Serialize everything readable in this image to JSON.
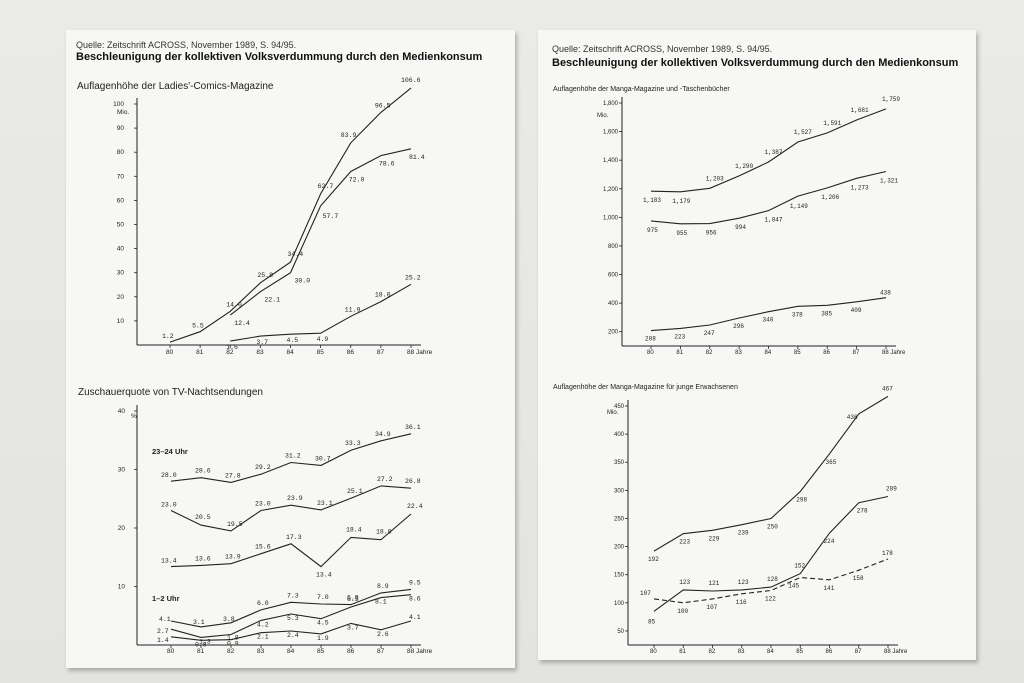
{
  "sheets": [
    {
      "source": "Quelle: Zeitschrift ACROSS, November 1989, S. 94/95.",
      "heading": "Beschleunigung der kollektiven Volksverdummung durch den Medienkonsum"
    },
    {
      "source": "Quelle: Zeitschrift ACROSS, November 1989, S. 94/95.",
      "heading": "Beschleunigung der kollektiven Volksverdummung durch den Medienkonsum"
    }
  ],
  "chart_data": [
    {
      "type": "line",
      "title": "Auflagenhöhe der Ladies'-Comics-Magazine",
      "ylabel": "Mio.",
      "x": [
        "80",
        "81",
        "82",
        "83",
        "84",
        "85",
        "86",
        "87",
        "88"
      ],
      "x_suffix": "Jahre",
      "ylim": [
        0,
        100
      ],
      "yticks": [
        10,
        20,
        30,
        40,
        50,
        60,
        70,
        80,
        90,
        100
      ],
      "series": [
        {
          "values": [
            1.2,
            5.5,
            14.0,
            25.8,
            34.4,
            62.7,
            83.9,
            96.5,
            106.6
          ],
          "labels": [
            "1.2",
            "5.5",
            "14.0",
            "25.8",
            "34.4",
            "62.7",
            "83.9",
            "96.5",
            "106.6"
          ]
        },
        {
          "values": [
            null,
            null,
            12.4,
            22.1,
            30.0,
            57.7,
            72.0,
            78.6,
            81.4
          ],
          "labels": [
            "",
            "",
            "12.4",
            "22.1",
            "30.0",
            "57.7",
            "72.0",
            "78.6",
            "81.4"
          ]
        },
        {
          "values": [
            null,
            null,
            1.6,
            3.7,
            4.5,
            4.9,
            11.9,
            18.0,
            25.2
          ],
          "labels": [
            "",
            "",
            "1.6",
            "3.7",
            "4.5",
            "4.9",
            "11.9",
            "18.0",
            "25.2"
          ]
        }
      ]
    },
    {
      "type": "line",
      "title": "Zuschauerquote von TV-Nachtsendungen",
      "ylabel": "%",
      "x": [
        "80",
        "81",
        "82",
        "83",
        "84",
        "85",
        "86",
        "87",
        "88"
      ],
      "x_suffix": "Jahre",
      "ylim": [
        0,
        40
      ],
      "yticks": [
        10,
        20,
        30,
        40
      ],
      "annotations": [
        "23–24 Uhr",
        "1–2 Uhr"
      ],
      "series": [
        {
          "values": [
            28.0,
            28.6,
            27.8,
            29.2,
            31.2,
            30.7,
            33.3,
            34.9,
            36.1
          ],
          "labels": [
            "28.0",
            "28.6",
            "27.8",
            "29.2",
            "31.2",
            "30.7",
            "33.3",
            "34.9",
            "36.1"
          ]
        },
        {
          "values": [
            23.0,
            20.5,
            19.5,
            23.0,
            23.9,
            23.1,
            25.1,
            27.2,
            26.8
          ],
          "labels": [
            "23.0",
            "20.5",
            "19.5",
            "23.0",
            "23.9",
            "23.1",
            "25.1",
            "27.2",
            "26.8"
          ]
        },
        {
          "values": [
            13.4,
            13.6,
            13.9,
            15.6,
            17.3,
            13.4,
            18.4,
            18.0,
            22.4
          ],
          "labels": [
            "13.4",
            "13.6",
            "13.9",
            "15.6",
            "17.3",
            "13.4",
            "18.4",
            "18.0",
            "22.4"
          ]
        },
        {
          "values": [
            4.1,
            3.1,
            3.8,
            6.0,
            7.3,
            7.0,
            6.9,
            8.9,
            9.5
          ],
          "labels": [
            "4.1",
            "3.1",
            "3.8",
            "6.0",
            "7.3",
            "7.0",
            "6.9",
            "8.9",
            "9.5"
          ]
        },
        {
          "values": [
            2.7,
            1.3,
            1.8,
            4.2,
            5.3,
            4.5,
            6.5,
            8.1,
            8.6
          ],
          "labels": [
            "2.7",
            "1.3",
            "1.8",
            "4.2",
            "5.3",
            "4.5",
            "6.5",
            "8.1",
            "8.6"
          ]
        },
        {
          "values": [
            1.4,
            0.8,
            0.9,
            2.1,
            2.4,
            1.9,
            3.7,
            2.6,
            4.1
          ],
          "labels": [
            "1.4",
            "0.8",
            "0.9",
            "2.1",
            "2.4",
            "1.9",
            "3.7",
            "2.6",
            "4.1"
          ]
        }
      ]
    },
    {
      "type": "line",
      "title": "Auflagenhöhe der Manga-Magazine und -Taschenbücher",
      "ylabel": "Mio.",
      "x": [
        "80",
        "81",
        "82",
        "83",
        "84",
        "85",
        "86",
        "87",
        "88"
      ],
      "x_suffix": "Jahre",
      "ylim": [
        100,
        1800
      ],
      "yticks": [
        200,
        400,
        600,
        800,
        1000,
        1200,
        1400,
        1600,
        1800
      ],
      "ytick_labels": [
        "200",
        "400",
        "600",
        "800",
        "1,000",
        "1,200",
        "1,400",
        "1,600",
        "1,800"
      ],
      "series": [
        {
          "values": [
            1183,
            1179,
            1203,
            1290,
            1387,
            1527,
            1591,
            1681,
            1759
          ],
          "labels": [
            "1,183",
            "1,179",
            "1,203",
            "1,290",
            "1,387",
            "1,527",
            "1,591",
            "1,681",
            "1,759"
          ]
        },
        {
          "values": [
            975,
            955,
            956,
            994,
            1047,
            1149,
            1206,
            1273,
            1321
          ],
          "labels": [
            "975",
            "955",
            "956",
            "994",
            "1,047",
            "1,149",
            "1,206",
            "1,273",
            "1,321"
          ]
        },
        {
          "values": [
            208,
            223,
            247,
            296,
            340,
            378,
            385,
            409,
            438
          ],
          "labels": [
            "208",
            "223",
            "247",
            "296",
            "340",
            "378",
            "385",
            "409",
            "438"
          ]
        }
      ]
    },
    {
      "type": "line",
      "title": "Auflagenhöhe der Manga-Magazine für junge Erwachsenen",
      "ylabel": "Mio.",
      "x": [
        "80",
        "81",
        "82",
        "83",
        "84",
        "85",
        "86",
        "87",
        "88"
      ],
      "x_suffix": "Jahre",
      "ylim": [
        25,
        450
      ],
      "yticks": [
        50,
        100,
        150,
        200,
        250,
        300,
        350,
        400,
        450
      ],
      "series": [
        {
          "values": [
            192,
            223,
            229,
            239,
            250,
            298,
            365,
            436,
            467
          ],
          "labels": [
            "192",
            "223",
            "229",
            "239",
            "250",
            "298",
            "365",
            "436",
            "467"
          ]
        },
        {
          "values": [
            85,
            123,
            121,
            123,
            128,
            152,
            224,
            278,
            289
          ],
          "labels": [
            "85",
            "123",
            "121",
            "123",
            "128",
            "152",
            "224",
            "278",
            "289"
          ]
        },
        {
          "values": [
            107,
            100,
            107,
            116,
            122,
            145,
            141,
            158,
            178
          ],
          "labels": [
            "107",
            "100",
            "107",
            "116",
            "122",
            "145",
            "141",
            "158",
            "178"
          ],
          "dashed": true
        }
      ]
    }
  ]
}
